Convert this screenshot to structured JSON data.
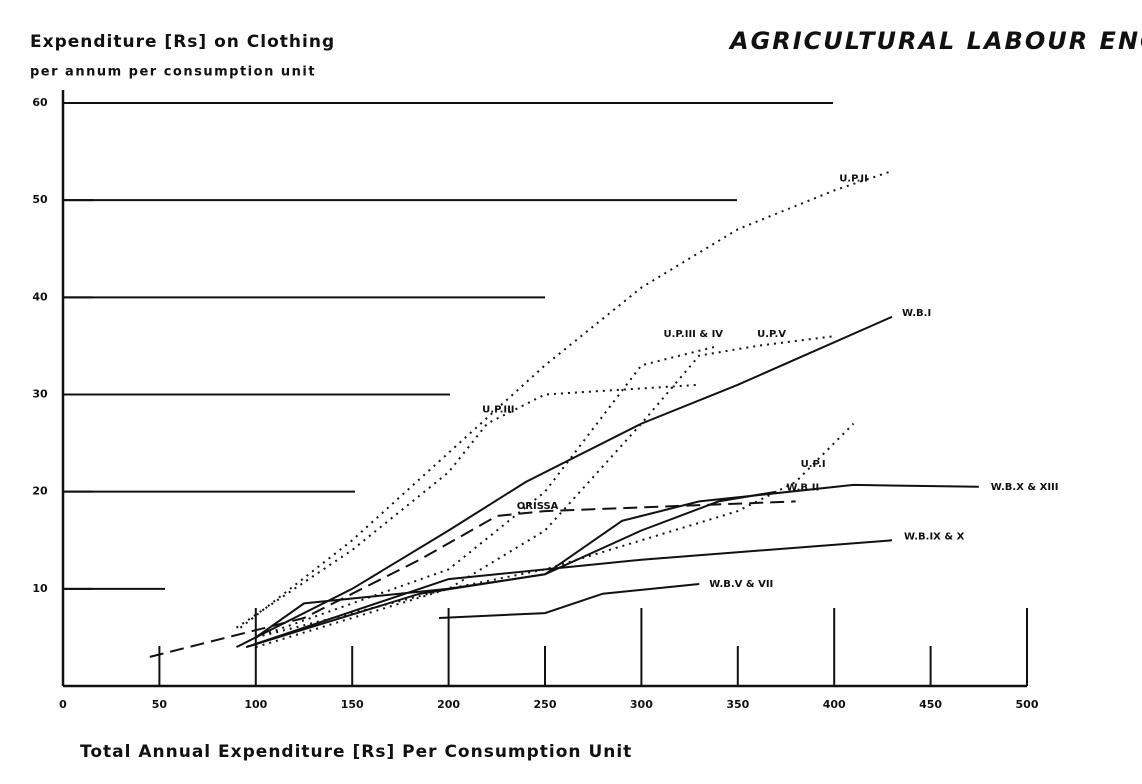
{
  "chart_data": {
    "type": "line",
    "title": "AGRICULTURAL LABOUR ENQUIRY-II",
    "y_label": "Expenditure [Rs] on Clothing",
    "y_sublabel": "per annum per consumption unit",
    "x_label": "Total Annual Expenditure [Rs] Per Consumption Unit",
    "xlim": [
      0,
      500
    ],
    "ylim": [
      0,
      60
    ],
    "xticks": [
      0,
      50,
      100,
      150,
      200,
      250,
      300,
      350,
      400,
      450,
      500
    ],
    "yticks": [
      10,
      20,
      30,
      40,
      50,
      60
    ],
    "grid": true,
    "series": [
      {
        "name": "U.P.II",
        "color": "#111111",
        "style": "dotted",
        "x": [
          92,
          150,
          200,
          250,
          300,
          350,
          400,
          430
        ],
        "values": [
          6,
          15,
          24,
          33,
          41,
          47,
          51,
          53
        ]
      },
      {
        "name": "W.B.I",
        "color": "#111111",
        "style": "solid",
        "x": [
          90,
          150,
          200,
          240,
          300,
          350,
          430
        ],
        "values": [
          4,
          10,
          16,
          21,
          27,
          31,
          38
        ]
      },
      {
        "name": "U.P.V",
        "color": "#111111",
        "style": "dotted",
        "x": [
          100,
          200,
          250,
          300,
          330,
          360,
          400
        ],
        "values": [
          4,
          10,
          16,
          27,
          34,
          35,
          36
        ]
      },
      {
        "name": "U.P.III & IV",
        "color": "#111111",
        "style": "dotted",
        "x": [
          100,
          200,
          250,
          300,
          340
        ],
        "values": [
          5,
          12,
          20,
          33,
          35
        ]
      },
      {
        "name": "U.P.III",
        "color": "#111111",
        "style": "dotted",
        "x": [
          90,
          150,
          200,
          220,
          250,
          330
        ],
        "values": [
          6,
          14,
          22,
          27,
          30,
          31
        ]
      },
      {
        "name": "U.P.I",
        "color": "#111111",
        "style": "dotted",
        "x": [
          100,
          200,
          250,
          300,
          350,
          380,
          410
        ],
        "values": [
          5,
          10,
          12,
          15,
          18,
          21,
          27
        ]
      },
      {
        "name": "ORISSA",
        "color": "#111111",
        "style": "dashed",
        "x": [
          45,
          125,
          185,
          225,
          250,
          380
        ],
        "values": [
          3,
          7,
          13,
          17.5,
          18,
          19
        ]
      },
      {
        "name": "W.B.II",
        "color": "#111111",
        "style": "solid",
        "x": [
          95,
          185,
          250,
          300,
          340,
          370
        ],
        "values": [
          4,
          9.5,
          11.5,
          16,
          19,
          20
        ]
      },
      {
        "name": "W.B.X & XIII",
        "color": "#111111",
        "style": "solid",
        "x": [
          100,
          125,
          200,
          250,
          290,
          330,
          410,
          475
        ],
        "values": [
          5,
          8.5,
          10,
          11.5,
          17,
          19,
          20.7,
          20.5
        ]
      },
      {
        "name": "W.B.IX & X",
        "color": "#111111",
        "style": "solid",
        "x": [
          95,
          200,
          300,
          430
        ],
        "values": [
          4,
          11,
          13,
          15
        ]
      },
      {
        "name": "W.B.V & VII",
        "color": "#111111",
        "style": "solid",
        "x": [
          195,
          250,
          280,
          330
        ],
        "values": [
          7,
          7.5,
          9.5,
          10.5
        ]
      }
    ]
  }
}
